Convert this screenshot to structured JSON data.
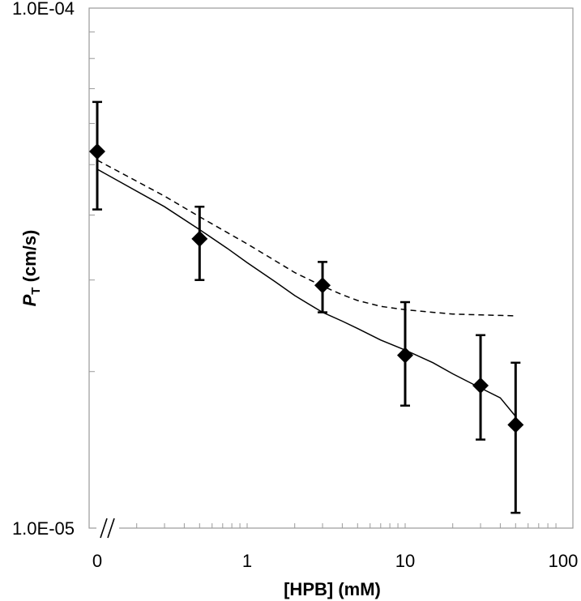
{
  "chart_data": {
    "type": "scatter",
    "title": "",
    "xlabel": "[HPB] (mM)",
    "ylabel_main": "P",
    "ylabel_sub": "T",
    "ylabel_unit": " (cm/s)",
    "xscale": "log",
    "yscale": "log",
    "xlim": [
      0.15,
      100
    ],
    "ylim": [
      1e-05,
      0.0001
    ],
    "x_tick_labels": [
      {
        "label": "0",
        "value": 0.15
      },
      {
        "label": "1",
        "value": 1
      },
      {
        "label": "10",
        "value": 10
      },
      {
        "label": "100",
        "value": 100
      }
    ],
    "y_tick_labels": [
      {
        "label": "1.0E-04",
        "value": 0.0001
      },
      {
        "label": "1.0E-05",
        "value": 1e-05
      }
    ],
    "axis_break_marker": "//",
    "grid": false,
    "series": [
      {
        "style": "diamond-markers-with-error-bars",
        "x": [
          0,
          0.5,
          3,
          10,
          30,
          50
        ],
        "y": [
          5.3e-05,
          3.6e-05,
          2.93e-05,
          2.15e-05,
          1.88e-05,
          1.58e-05
        ],
        "yerr_low": [
          4.1e-05,
          3e-05,
          2.6e-05,
          1.72e-05,
          1.48e-05,
          1.07e-05
        ],
        "yerr_high": [
          6.6e-05,
          4.15e-05,
          3.25e-05,
          2.72e-05,
          2.35e-05,
          2.08e-05
        ]
      },
      {
        "style": "dashed-line",
        "x": [
          0,
          0.3,
          0.5,
          0.75,
          1,
          1.5,
          2,
          3,
          4,
          5,
          7,
          10,
          15,
          20,
          30,
          40,
          50
        ],
        "y": [
          5.1e-05,
          4.35e-05,
          3.97e-05,
          3.7e-05,
          3.52e-05,
          3.27e-05,
          3.1e-05,
          2.92e-05,
          2.81e-05,
          2.74e-05,
          2.67e-05,
          2.63e-05,
          2.6e-05,
          2.58e-05,
          2.57e-05,
          2.565e-05,
          2.56e-05
        ]
      },
      {
        "style": "solid-line",
        "x": [
          0,
          0.3,
          0.5,
          0.75,
          1,
          1.5,
          2,
          3,
          4,
          5,
          7,
          10,
          15,
          20,
          30,
          40,
          50
        ],
        "y": [
          4.9e-05,
          4.15e-05,
          3.75e-05,
          3.45e-05,
          3.24e-05,
          2.98e-05,
          2.8e-05,
          2.6e-05,
          2.5e-05,
          2.42e-05,
          2.3e-05,
          2.2e-05,
          2.08e-05,
          1.98e-05,
          1.86e-05,
          1.78e-05,
          1.64e-05
        ]
      }
    ]
  }
}
